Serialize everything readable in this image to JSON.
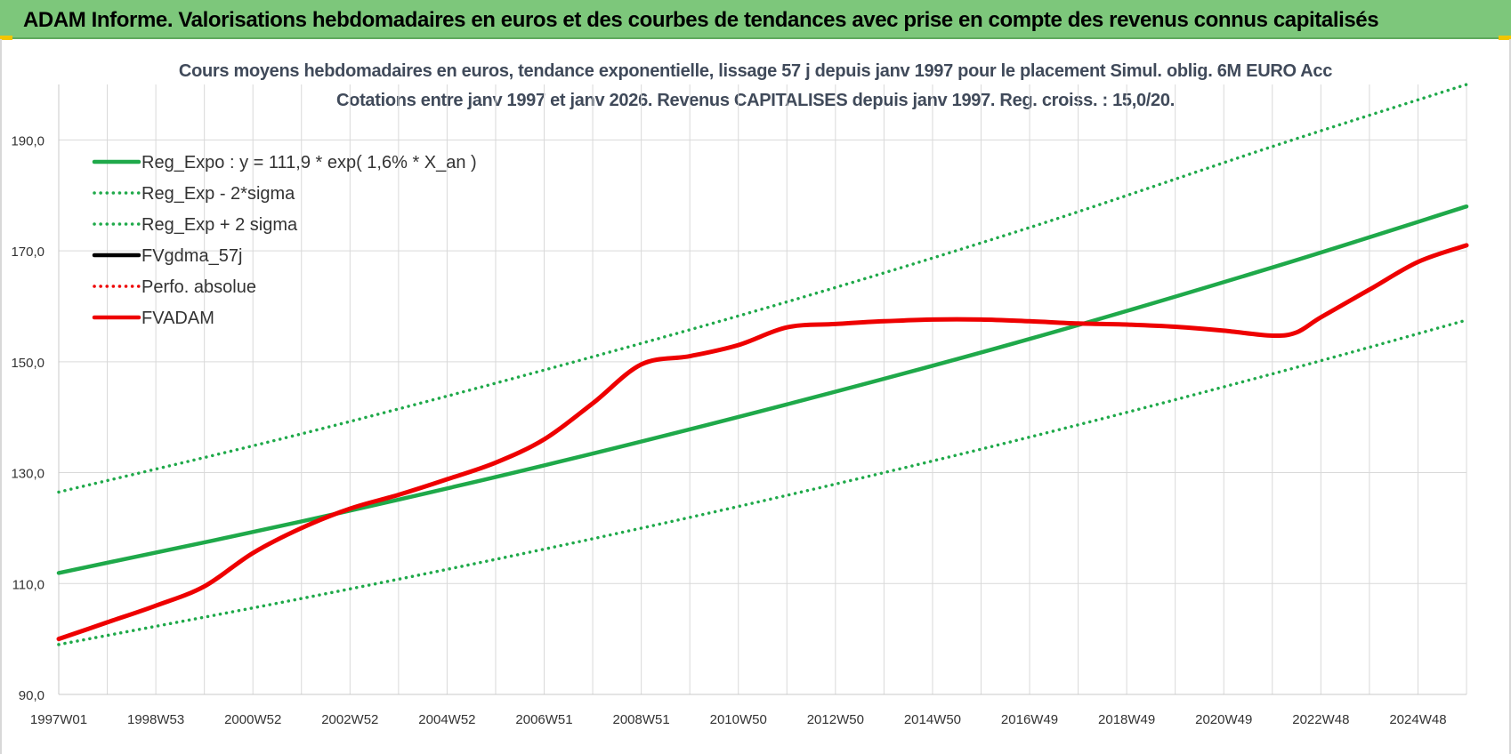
{
  "header": {
    "title": "ADAM Informe. Valorisations hebdomadaires en euros et des courbes de tendances avec prise en compte des revenus connus capitalisés"
  },
  "colors": {
    "banner": "#7dc77b",
    "green": "#1fa94a",
    "red": "#ee0000",
    "black": "#000000",
    "grid": "#d9d9d9",
    "subtitle": "#404a5a"
  },
  "chart_data": {
    "type": "line",
    "title": "Cours moyens hebdomadaires en euros, tendance exponentielle, lissage 57 j depuis janv 1997 pour le placement Simul. oblig. 6M EURO Acc",
    "subtitle": "Cotations entre janv 1997 et janv 2026. Revenus CAPITALISES depuis janv 1997. Reg. croiss. : 15,0/20.",
    "xlabel": "",
    "ylabel": "",
    "x_range": [
      0,
      29
    ],
    "ylim": [
      90,
      200
    ],
    "y_ticks": [
      {
        "value": 90,
        "label": "90,0"
      },
      {
        "value": 110,
        "label": "110,0"
      },
      {
        "value": 130,
        "label": "130,0"
      },
      {
        "value": 150,
        "label": "150,0"
      },
      {
        "value": 170,
        "label": "170,0"
      },
      {
        "value": 190,
        "label": "190,0"
      }
    ],
    "x_ticks": [
      {
        "pos": 0,
        "label": "1997W01"
      },
      {
        "pos": 2,
        "label": "1998W53"
      },
      {
        "pos": 4,
        "label": "2000W52"
      },
      {
        "pos": 6,
        "label": "2002W52"
      },
      {
        "pos": 8,
        "label": "2004W52"
      },
      {
        "pos": 10,
        "label": "2006W51"
      },
      {
        "pos": 12,
        "label": "2008W51"
      },
      {
        "pos": 14,
        "label": "2010W50"
      },
      {
        "pos": 16,
        "label": "2012W50"
      },
      {
        "pos": 18,
        "label": "2014W50"
      },
      {
        "pos": 20,
        "label": "2016W49"
      },
      {
        "pos": 22,
        "label": "2018W49"
      },
      {
        "pos": 24,
        "label": "2020W49"
      },
      {
        "pos": 26,
        "label": "2022W48"
      },
      {
        "pos": 28,
        "label": "2024W48"
      }
    ],
    "legend_position": "top-left",
    "series": [
      {
        "name": "Reg_Expo : y = 111,9 * exp( 1,6% *  X_an )",
        "color": "#1fa94a",
        "style": "solid",
        "x": [
          0,
          5,
          10,
          15,
          20,
          25,
          29
        ],
        "y": [
          111.9,
          121.2,
          131.3,
          142.3,
          154.1,
          167.0,
          178.0
        ]
      },
      {
        "name": "Reg_Exp - 2*sigma",
        "color": "#1fa94a",
        "style": "dotted",
        "x": [
          0,
          5,
          10,
          15,
          20,
          25,
          29
        ],
        "y": [
          99.0,
          107.3,
          116.2,
          125.9,
          136.4,
          147.8,
          157.5
        ]
      },
      {
        "name": "Reg_Exp + 2 sigma",
        "color": "#1fa94a",
        "style": "dotted",
        "x": [
          0,
          5,
          10,
          15,
          20,
          25,
          29
        ],
        "y": [
          126.5,
          137.0,
          148.5,
          160.8,
          174.2,
          188.8,
          200.0
        ]
      },
      {
        "name": "FVgdma_57j",
        "color": "#000000",
        "style": "solid",
        "x": [],
        "y": []
      },
      {
        "name": "Perfo. absolue",
        "color": "#ee0000",
        "style": "dotted",
        "x": [],
        "y": []
      },
      {
        "name": "FVADAM",
        "color": "#ee0000",
        "style": "solid",
        "x": [
          0,
          1,
          2,
          3,
          4,
          5,
          6,
          7,
          8,
          9,
          10,
          11,
          12,
          13,
          14,
          15,
          16,
          17,
          18,
          19,
          20,
          21,
          22,
          23,
          24,
          25,
          25.5,
          26,
          27,
          28,
          29
        ],
        "y": [
          100.0,
          103.0,
          106.0,
          109.5,
          115.5,
          120.0,
          123.5,
          126.0,
          128.8,
          131.8,
          136.0,
          142.5,
          149.5,
          151.0,
          153.0,
          156.2,
          156.8,
          157.3,
          157.6,
          157.6,
          157.3,
          156.9,
          156.7,
          156.3,
          155.6,
          154.7,
          155.3,
          158.0,
          163.0,
          168.0,
          171.0
        ]
      }
    ]
  }
}
